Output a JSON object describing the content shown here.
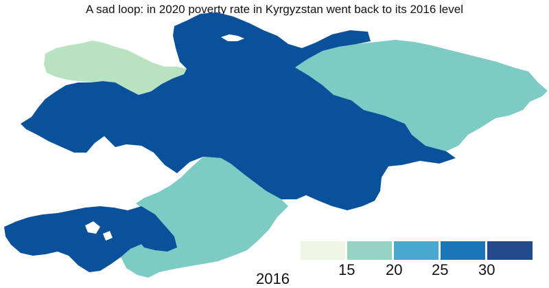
{
  "title": "A sad loop: in 2020 poverty rate in Kyrgyzstan went back to its 2016 level",
  "year": "2016",
  "legend": {
    "bins": [
      {
        "color": "#eef7e4"
      },
      {
        "color": "#96d3c3"
      },
      {
        "color": "#4aa8cf"
      },
      {
        "color": "#1d76b5"
      },
      {
        "color": "#224a8c"
      }
    ],
    "ticks": [
      "15",
      "20",
      "25",
      "30"
    ]
  },
  "colors": {
    "light": "#b9e2c0",
    "mid": "#7ccbc4",
    "dark": "#0a519c"
  }
}
